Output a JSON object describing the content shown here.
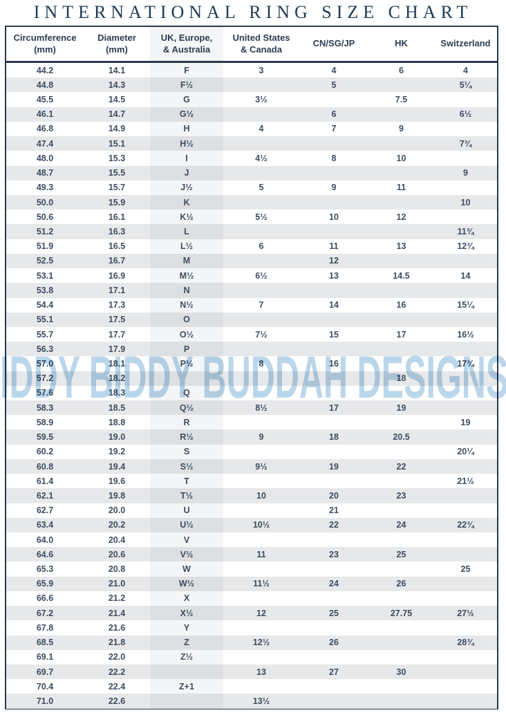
{
  "page": {
    "title": "INTERNATIONAL RING SIZE CHART",
    "watermark": "IDDY BIDDY BUDDAH DESIGNS"
  },
  "colors": {
    "border_navy": "#27394e",
    "title_text": "#1d3a55",
    "header_text": "#2b3c52",
    "cell_text": "#3d4c60",
    "stripe_gray": "#e7e8ea",
    "uk_column_tint": "#eff0f2",
    "watermark_blue": "#bad6eb"
  },
  "chart_data": {
    "type": "table",
    "title": "INTERNATIONAL RING SIZE CHART",
    "columns": [
      "Circumference\n(mm)",
      "Diameter\n(mm)",
      "UK, Europe,\n& Australia",
      "United States\n& Canada",
      "CN/SG/JP",
      "HK",
      "Switzerland"
    ],
    "highlighted_column_index": 2,
    "rows": [
      [
        "44.2",
        "14.1",
        "F",
        "3",
        "4",
        "6",
        "4"
      ],
      [
        "44.8",
        "14.3",
        "F½",
        "",
        "5",
        "",
        "5¼"
      ],
      [
        "45.5",
        "14.5",
        "G",
        "3½",
        "",
        "7.5",
        ""
      ],
      [
        "46.1",
        "14.7",
        "G½",
        "",
        "6",
        "",
        "6½"
      ],
      [
        "46.8",
        "14.9",
        "H",
        "4",
        "7",
        "9",
        ""
      ],
      [
        "47.4",
        "15.1",
        "H½",
        "",
        "",
        "",
        "7¾"
      ],
      [
        "48.0",
        "15.3",
        "I",
        "4½",
        "8",
        "10",
        ""
      ],
      [
        "48.7",
        "15.5",
        "J",
        "",
        "",
        "",
        "9"
      ],
      [
        "49.3",
        "15.7",
        "J½",
        "5",
        "9",
        "11",
        ""
      ],
      [
        "50.0",
        "15.9",
        "K",
        "",
        "",
        "",
        "10"
      ],
      [
        "50.6",
        "16.1",
        "K½",
        "5½",
        "10",
        "12",
        ""
      ],
      [
        "51.2",
        "16.3",
        "L",
        "",
        "",
        "",
        "11¾"
      ],
      [
        "51.9",
        "16.5",
        "L½",
        "6",
        "11",
        "13",
        "12¾"
      ],
      [
        "52.5",
        "16.7",
        "M",
        "",
        "12",
        "",
        ""
      ],
      [
        "53.1",
        "16.9",
        "M½",
        "6½",
        "13",
        "14.5",
        "14"
      ],
      [
        "53.8",
        "17.1",
        "N",
        "",
        "",
        "",
        ""
      ],
      [
        "54.4",
        "17.3",
        "N½",
        "7",
        "14",
        "16",
        "15¼"
      ],
      [
        "55.1",
        "17.5",
        "O",
        "",
        "",
        "",
        ""
      ],
      [
        "55.7",
        "17.7",
        "O½",
        "7½",
        "15",
        "17",
        "16½"
      ],
      [
        "56.3",
        "17.9",
        "P",
        "",
        "",
        "",
        ""
      ],
      [
        "57.0",
        "18.1",
        "P½",
        "8",
        "16",
        "",
        "17¾"
      ],
      [
        "57.2",
        "18.2",
        "",
        "",
        "",
        "18",
        ""
      ],
      [
        "57.6",
        "18.3",
        "Q",
        "",
        "",
        "",
        ""
      ],
      [
        "58.3",
        "18.5",
        "Q½",
        "8½",
        "17",
        "19",
        ""
      ],
      [
        "58.9",
        "18.8",
        "R",
        "",
        "",
        "",
        "19"
      ],
      [
        "59.5",
        "19.0",
        "R½",
        "9",
        "18",
        "20.5",
        ""
      ],
      [
        "60.2",
        "19.2",
        "S",
        "",
        "",
        "",
        "20¼"
      ],
      [
        "60.8",
        "19.4",
        "S½",
        "9½",
        "19",
        "22",
        ""
      ],
      [
        "61.4",
        "19.6",
        "T",
        "",
        "",
        "",
        "21½"
      ],
      [
        "62.1",
        "19.8",
        "T½",
        "10",
        "20",
        "23",
        ""
      ],
      [
        "62.7",
        "20.0",
        "U",
        "",
        "21",
        "",
        ""
      ],
      [
        "63.4",
        "20.2",
        "U½",
        "10½",
        "22",
        "24",
        "22¾"
      ],
      [
        "64.0",
        "20.4",
        "V",
        "",
        "",
        "",
        ""
      ],
      [
        "64.6",
        "20.6",
        "V½",
        "11",
        "23",
        "25",
        ""
      ],
      [
        "65.3",
        "20.8",
        "W",
        "",
        "",
        "",
        "25"
      ],
      [
        "65.9",
        "21.0",
        "W½",
        "11½",
        "24",
        "26",
        ""
      ],
      [
        "66.6",
        "21.2",
        "X",
        "",
        "",
        "",
        ""
      ],
      [
        "67.2",
        "21.4",
        "X½",
        "12",
        "25",
        "27.75",
        "27½"
      ],
      [
        "67.8",
        "21.6",
        "Y",
        "",
        "",
        "",
        ""
      ],
      [
        "68.5",
        "21.8",
        "Z",
        "12½",
        "26",
        "",
        "28¾"
      ],
      [
        "69.1",
        "22.0",
        "Z½",
        "",
        "",
        "",
        ""
      ],
      [
        "69.7",
        "22.2",
        "",
        "13",
        "27",
        "30",
        ""
      ],
      [
        "70.4",
        "22.4",
        "Z+1",
        "",
        "",
        "",
        ""
      ],
      [
        "71.0",
        "22.6",
        "",
        "13½",
        "",
        "",
        ""
      ]
    ]
  }
}
